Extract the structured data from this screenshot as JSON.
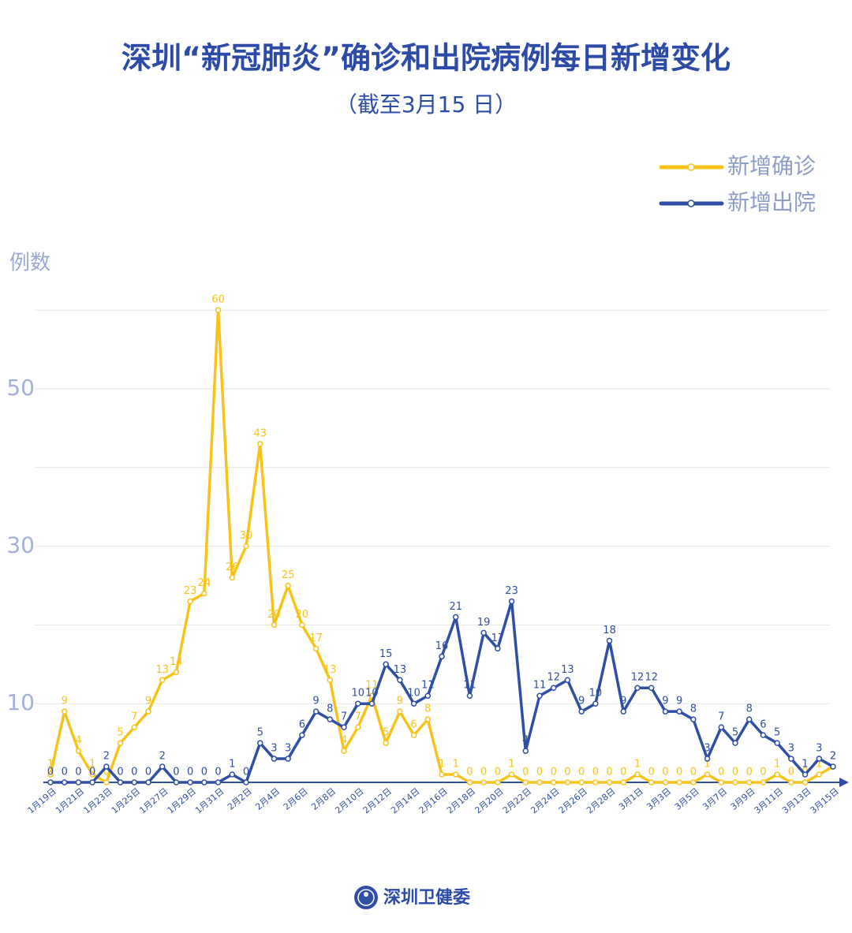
{
  "chart_data": {
    "type": "line",
    "title": "深圳“新冠肺炎”确诊和出院病例每日新增变化",
    "subtitle": "（截至3月15 日）",
    "y_label": "例数",
    "source": "深圳卫健委",
    "categories": [
      "1月19日",
      null,
      "1月21日",
      null,
      "1月23日",
      null,
      "1月25日",
      null,
      "1月27日",
      null,
      "1月29日",
      null,
      "1月31日",
      null,
      "2月2日",
      null,
      "2月4日",
      null,
      "2月6日",
      null,
      "2月8日",
      null,
      "2月10日",
      null,
      "2月12日",
      null,
      "2月14日",
      null,
      "2月16日",
      null,
      "2月18日",
      null,
      "2月20日",
      null,
      "2月22日",
      null,
      "2月24日",
      null,
      "2月26日",
      null,
      "2月28日",
      null,
      "3月1日",
      null,
      "3月3日",
      null,
      "3月5日",
      null,
      "3月7日",
      null,
      "3月9日",
      null,
      "3月11日",
      null,
      "3月13日",
      null,
      "3月15日"
    ],
    "series": [
      {
        "name": "新增确诊",
        "color": "#f7c31b",
        "values": [
          1,
          9,
          4,
          1,
          0,
          5,
          7,
          9,
          13,
          14,
          23,
          24,
          60,
          26,
          30,
          43,
          20,
          25,
          20,
          17,
          13,
          4,
          7,
          11,
          5,
          9,
          6,
          8,
          1,
          1,
          0,
          0,
          0,
          1,
          0,
          0,
          0,
          0,
          0,
          0,
          0,
          0,
          1,
          0,
          0,
          0,
          0,
          1,
          0,
          0,
          0,
          0,
          1,
          0,
          0,
          1,
          2
        ]
      },
      {
        "name": "新增出院",
        "color": "#2f4fa5",
        "values": [
          0,
          0,
          0,
          0,
          2,
          0,
          0,
          0,
          2,
          0,
          0,
          0,
          0,
          1,
          0,
          5,
          3,
          3,
          6,
          9,
          8,
          7,
          10,
          10,
          15,
          13,
          10,
          11,
          16,
          21,
          11,
          19,
          17,
          23,
          4,
          11,
          12,
          13,
          9,
          10,
          18,
          9,
          12,
          12,
          9,
          9,
          8,
          3,
          7,
          5,
          8,
          6,
          5,
          3,
          1,
          3,
          2
        ]
      }
    ],
    "ylim": [
      0,
      62
    ],
    "yticks": [
      10,
      30,
      50
    ],
    "minor_yticks": [
      20,
      40,
      60
    ],
    "grid": true
  }
}
